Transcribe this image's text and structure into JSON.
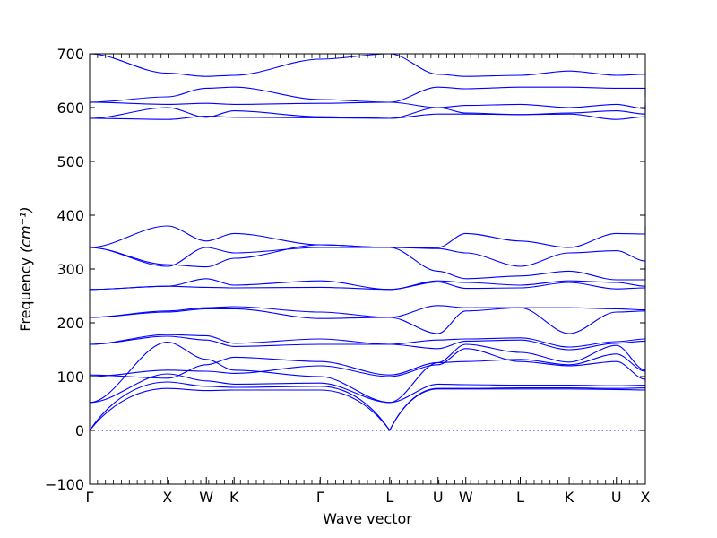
{
  "chart_data": {
    "type": "line",
    "title": "",
    "xlabel": "Wave vector",
    "ylabel": "Frequency",
    "ylabel_unit": "(cm⁻¹)",
    "ylim": [
      -100,
      700
    ],
    "yticks": [
      -100,
      0,
      100,
      200,
      300,
      400,
      500,
      600,
      700
    ],
    "grid": false,
    "line_color": "#0000ff",
    "high_symmetry_points": [
      {
        "label": "Γ",
        "x": 0.0
      },
      {
        "label": "X",
        "x": 0.14
      },
      {
        "label": "W",
        "x": 0.21
      },
      {
        "label": "K",
        "x": 0.26
      },
      {
        "label": "Γ",
        "x": 0.415
      },
      {
        "label": "L",
        "x": 0.54
      },
      {
        "label": "U",
        "x": 0.627
      },
      {
        "label": "W",
        "x": 0.677
      },
      {
        "label": "L",
        "x": 0.775
      },
      {
        "label": "K",
        "x": 0.863
      },
      {
        "label": "U",
        "x": 0.948
      },
      {
        "label": "X",
        "x": 1.0
      }
    ],
    "series": [
      {
        "values": [
          0,
          78,
          74,
          75,
          75,
          0,
          77,
          77,
          77,
          77,
          76,
          75,
          74
        ]
      },
      {
        "values": [
          0,
          90,
          82,
          80,
          82,
          0,
          78,
          78,
          79,
          79,
          78,
          79,
          78
        ]
      },
      {
        "values": [
          52,
          105,
          92,
          86,
          88,
          52,
          86,
          85,
          84,
          84,
          83,
          84,
          84
        ]
      },
      {
        "values": [
          52,
          164,
          132,
          112,
          100,
          52,
          126,
          128,
          132,
          122,
          142,
          110,
          100
        ]
      },
      {
        "values": [
          100,
          112,
          110,
          106,
          120,
          100,
          122,
          152,
          128,
          120,
          128,
          95,
          90
        ]
      },
      {
        "values": [
          103,
          97,
          122,
          136,
          128,
          103,
          126,
          160,
          145,
          127,
          158,
          112,
          110
        ]
      },
      {
        "values": [
          160,
          175,
          168,
          156,
          160,
          160,
          152,
          166,
          168,
          150,
          162,
          166,
          165
        ]
      },
      {
        "values": [
          160,
          178,
          176,
          162,
          170,
          160,
          168,
          170,
          172,
          155,
          165,
          170,
          175
        ]
      },
      {
        "values": [
          210,
          220,
          226,
          226,
          208,
          210,
          180,
          222,
          228,
          180,
          220,
          222,
          222
        ]
      },
      {
        "values": [
          210,
          222,
          228,
          230,
          220,
          210,
          232,
          228,
          228,
          228,
          226,
          224,
          222
        ]
      },
      {
        "values": [
          262,
          268,
          266,
          265,
          266,
          262,
          276,
          264,
          265,
          275,
          263,
          265,
          265
        ]
      },
      {
        "values": [
          262,
          268,
          282,
          270,
          278,
          262,
          278,
          275,
          270,
          278,
          275,
          268,
          266
        ]
      },
      {
        "values": [
          340,
          308,
          304,
          320,
          345,
          340,
          296,
          282,
          287,
          296,
          280,
          280,
          305
        ]
      },
      {
        "values": [
          340,
          305,
          340,
          330,
          340,
          340,
          338,
          330,
          305,
          330,
          334,
          315,
          300
        ]
      },
      {
        "values": [
          340,
          380,
          352,
          366,
          345,
          340,
          340,
          366,
          352,
          340,
          366,
          365,
          380
        ]
      },
      {
        "values": [
          580,
          578,
          584,
          582,
          581,
          580,
          588,
          588,
          587,
          588,
          578,
          583,
          578
        ]
      },
      {
        "values": [
          580,
          600,
          582,
          594,
          583,
          580,
          600,
          590,
          587,
          590,
          594,
          588,
          605
        ]
      },
      {
        "values": [
          610,
          606,
          608,
          606,
          608,
          610,
          600,
          604,
          606,
          600,
          606,
          598,
          608
        ]
      },
      {
        "values": [
          610,
          620,
          636,
          638,
          615,
          610,
          638,
          635,
          638,
          638,
          636,
          636,
          620
        ]
      },
      {
        "values": [
          700,
          664,
          658,
          660,
          690,
          700,
          662,
          658,
          660,
          668,
          660,
          662,
          665
        ]
      }
    ]
  },
  "colors": {
    "band": "#0000ff",
    "frame": "#000000",
    "background": "#ffffff"
  }
}
